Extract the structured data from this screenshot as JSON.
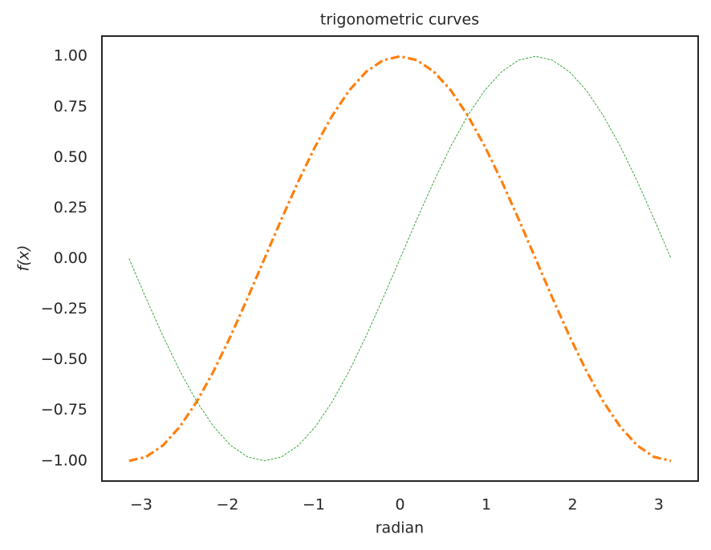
{
  "chart_data": {
    "type": "line",
    "title": "trigonometric curves",
    "xlabel": "radian",
    "ylabel": "f(x)",
    "x": [
      -3.1416,
      -2.9452,
      -2.7489,
      -2.5525,
      -2.3562,
      -2.1598,
      -1.9635,
      -1.7671,
      -1.5708,
      -1.3744,
      -1.1781,
      -0.9817,
      -0.7854,
      -0.589,
      -0.3927,
      -0.1963,
      0,
      0.1963,
      0.3927,
      0.589,
      0.7854,
      0.9817,
      1.1781,
      1.3744,
      1.5708,
      1.7671,
      1.9635,
      2.1598,
      2.3562,
      2.5525,
      2.7489,
      2.9452,
      3.1416
    ],
    "series": [
      {
        "color": "#ff7f0e",
        "values": [
          -1,
          -0.9808,
          -0.9239,
          -0.8315,
          -0.7071,
          -0.5556,
          -0.3827,
          -0.1951,
          0,
          0.1951,
          0.3827,
          0.5556,
          0.7071,
          0.8315,
          0.9239,
          0.9808,
          1,
          0.9808,
          0.9239,
          0.8315,
          0.7071,
          0.5556,
          0.3827,
          0.1951,
          0,
          -0.1951,
          -0.3827,
          -0.5556,
          -0.7071,
          -0.8315,
          -0.9239,
          -0.9808,
          -1
        ]
      },
      {
        "color": "#2ca02c",
        "values": [
          0,
          -0.1951,
          -0.3827,
          -0.5556,
          -0.7071,
          -0.8315,
          -0.9239,
          -0.9808,
          -1,
          -0.9808,
          -0.9239,
          -0.8315,
          -0.7071,
          -0.5556,
          -0.3827,
          -0.1951,
          0,
          0.1951,
          0.3827,
          0.5556,
          0.7071,
          0.8315,
          0.9239,
          0.9808,
          1,
          0.9808,
          0.9239,
          0.8315,
          0.7071,
          0.5556,
          0.3827,
          0.1951,
          0
        ]
      }
    ],
    "xlim": [
      -3.456,
      3.456
    ],
    "ylim": [
      -1.1,
      1.1
    ],
    "xticks": [
      {
        "value": -3,
        "label": "−3"
      },
      {
        "value": -2,
        "label": "−2"
      },
      {
        "value": -1,
        "label": "−1"
      },
      0,
      1,
      2,
      3
    ],
    "yticks": [
      {
        "value": -1,
        "label": "−1.00"
      },
      {
        "value": -0.75,
        "label": "−0.75"
      },
      {
        "value": -0.5,
        "label": "−0.50"
      },
      {
        "value": -0.25,
        "label": "−0.25"
      },
      {
        "value": 0,
        "label": "0.00"
      },
      {
        "value": 0.25,
        "label": "0.25"
      },
      {
        "value": 0.5,
        "label": "0.50"
      },
      {
        "value": 0.75,
        "label": "0.75"
      },
      {
        "value": 1,
        "label": "1.00"
      }
    ],
    "grid": false
  }
}
